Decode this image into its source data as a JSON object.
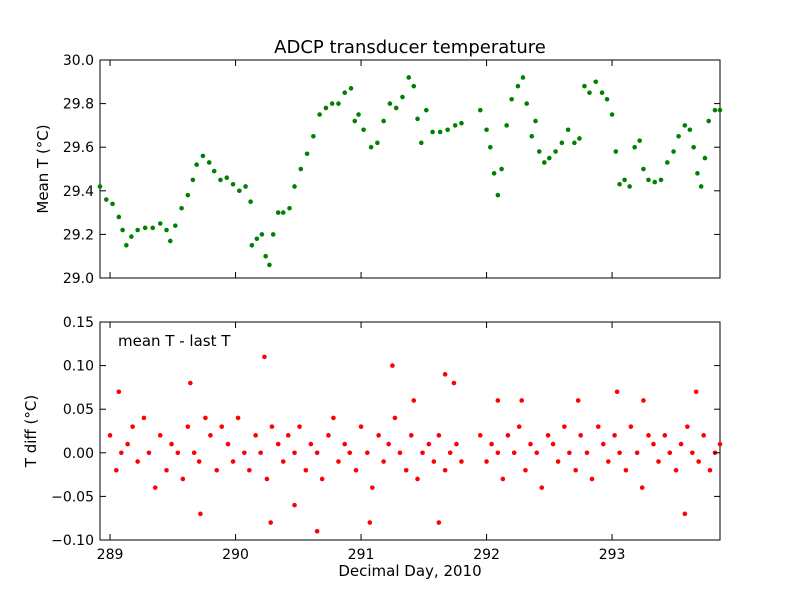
{
  "chart_data": [
    {
      "type": "scatter",
      "title": "ADCP transducer temperature",
      "xlabel": "",
      "ylabel": "Mean T (°C)",
      "xlim": [
        288.92,
        293.86
      ],
      "ylim": [
        29.0,
        30.0
      ],
      "xticks": [
        289,
        290,
        291,
        292,
        293
      ],
      "yticks": [
        29.0,
        29.2,
        29.4,
        29.6,
        29.8,
        30.0
      ],
      "ytick_labels": [
        "29.0",
        "29.2",
        "29.4",
        "29.6",
        "29.8",
        "30.0"
      ],
      "show_xtick_labels": false,
      "grid": false,
      "marker_color": "#008000",
      "series": [
        {
          "points": [
            [
              288.92,
              29.42
            ],
            [
              288.97,
              29.36
            ],
            [
              289.02,
              29.34
            ],
            [
              289.07,
              29.28
            ],
            [
              289.1,
              29.22
            ],
            [
              289.13,
              29.15
            ],
            [
              289.17,
              29.19
            ],
            [
              289.22,
              29.22
            ],
            [
              289.28,
              29.23
            ],
            [
              289.34,
              29.23
            ],
            [
              289.4,
              29.25
            ],
            [
              289.45,
              29.22
            ],
            [
              289.48,
              29.17
            ],
            [
              289.52,
              29.24
            ],
            [
              289.57,
              29.32
            ],
            [
              289.62,
              29.38
            ],
            [
              289.66,
              29.45
            ],
            [
              289.69,
              29.52
            ],
            [
              289.74,
              29.56
            ],
            [
              289.79,
              29.53
            ],
            [
              289.83,
              29.49
            ],
            [
              289.88,
              29.45
            ],
            [
              289.93,
              29.46
            ],
            [
              289.98,
              29.43
            ],
            [
              290.03,
              29.4
            ],
            [
              290.08,
              29.42
            ],
            [
              290.12,
              29.35
            ],
            [
              290.13,
              29.15
            ],
            [
              290.17,
              29.18
            ],
            [
              290.21,
              29.2
            ],
            [
              290.24,
              29.1
            ],
            [
              290.27,
              29.06
            ],
            [
              290.3,
              29.2
            ],
            [
              290.34,
              29.3
            ],
            [
              290.38,
              29.3
            ],
            [
              290.43,
              29.32
            ],
            [
              290.47,
              29.42
            ],
            [
              290.52,
              29.5
            ],
            [
              290.57,
              29.57
            ],
            [
              290.62,
              29.65
            ],
            [
              290.67,
              29.75
            ],
            [
              290.72,
              29.78
            ],
            [
              290.77,
              29.8
            ],
            [
              290.82,
              29.8
            ],
            [
              290.87,
              29.85
            ],
            [
              290.92,
              29.87
            ],
            [
              290.95,
              29.72
            ],
            [
              290.98,
              29.75
            ],
            [
              291.02,
              29.68
            ],
            [
              291.08,
              29.6
            ],
            [
              291.13,
              29.62
            ],
            [
              291.18,
              29.72
            ],
            [
              291.23,
              29.8
            ],
            [
              291.28,
              29.78
            ],
            [
              291.33,
              29.83
            ],
            [
              291.38,
              29.92
            ],
            [
              291.42,
              29.88
            ],
            [
              291.45,
              29.73
            ],
            [
              291.48,
              29.62
            ],
            [
              291.52,
              29.77
            ],
            [
              291.57,
              29.67
            ],
            [
              291.63,
              29.67
            ],
            [
              291.69,
              29.68
            ],
            [
              291.75,
              29.7
            ],
            [
              291.8,
              29.71
            ],
            [
              291.95,
              29.77
            ],
            [
              292.0,
              29.68
            ],
            [
              292.03,
              29.6
            ],
            [
              292.06,
              29.48
            ],
            [
              292.09,
              29.38
            ],
            [
              292.12,
              29.5
            ],
            [
              292.16,
              29.7
            ],
            [
              292.2,
              29.82
            ],
            [
              292.25,
              29.88
            ],
            [
              292.29,
              29.92
            ],
            [
              292.32,
              29.8
            ],
            [
              292.36,
              29.65
            ],
            [
              292.39,
              29.72
            ],
            [
              292.42,
              29.58
            ],
            [
              292.46,
              29.53
            ],
            [
              292.5,
              29.55
            ],
            [
              292.55,
              29.58
            ],
            [
              292.6,
              29.62
            ],
            [
              292.65,
              29.68
            ],
            [
              292.7,
              29.62
            ],
            [
              292.74,
              29.64
            ],
            [
              292.78,
              29.88
            ],
            [
              292.82,
              29.85
            ],
            [
              292.87,
              29.9
            ],
            [
              292.92,
              29.85
            ],
            [
              292.96,
              29.82
            ],
            [
              293.0,
              29.75
            ],
            [
              293.03,
              29.58
            ],
            [
              293.06,
              29.43
            ],
            [
              293.1,
              29.45
            ],
            [
              293.14,
              29.42
            ],
            [
              293.18,
              29.6
            ],
            [
              293.22,
              29.63
            ],
            [
              293.25,
              29.5
            ],
            [
              293.29,
              29.45
            ],
            [
              293.34,
              29.44
            ],
            [
              293.39,
              29.45
            ],
            [
              293.44,
              29.53
            ],
            [
              293.49,
              29.58
            ],
            [
              293.53,
              29.65
            ],
            [
              293.58,
              29.7
            ],
            [
              293.62,
              29.68
            ],
            [
              293.65,
              29.6
            ],
            [
              293.68,
              29.48
            ],
            [
              293.71,
              29.42
            ],
            [
              293.74,
              29.55
            ],
            [
              293.77,
              29.72
            ],
            [
              293.82,
              29.77
            ],
            [
              293.86,
              29.77
            ]
          ]
        }
      ]
    },
    {
      "type": "scatter",
      "title": "",
      "xlabel": "Decimal Day, 2010",
      "ylabel": "T diff (°C)",
      "annotation": "mean T - last T",
      "xlim": [
        288.92,
        293.86
      ],
      "ylim": [
        -0.1,
        0.15
      ],
      "xticks": [
        289,
        290,
        291,
        292,
        293
      ],
      "xtick_labels": [
        "289",
        "290",
        "291",
        "292",
        "293"
      ],
      "yticks": [
        -0.1,
        -0.05,
        0.0,
        0.05,
        0.1,
        0.15
      ],
      "ytick_labels": [
        "−0.10",
        "−0.05",
        "0.00",
        "0.05",
        "0.10",
        "0.15"
      ],
      "grid": false,
      "marker_color": "#ff0000",
      "series": [
        {
          "points": [
            [
              289.0,
              0.02
            ],
            [
              289.05,
              -0.02
            ],
            [
              289.09,
              0.0
            ],
            [
              289.14,
              0.01
            ],
            [
              289.18,
              0.03
            ],
            [
              289.22,
              -0.01
            ],
            [
              289.27,
              0.04
            ],
            [
              289.31,
              0.0
            ],
            [
              289.36,
              -0.04
            ],
            [
              289.4,
              0.02
            ],
            [
              289.45,
              -0.02
            ],
            [
              289.49,
              0.01
            ],
            [
              289.54,
              0.0
            ],
            [
              289.58,
              -0.03
            ],
            [
              289.62,
              0.03
            ],
            [
              289.67,
              0.0
            ],
            [
              289.71,
              -0.01
            ],
            [
              289.76,
              0.04
            ],
            [
              289.8,
              0.02
            ],
            [
              289.85,
              -0.02
            ],
            [
              289.89,
              0.03
            ],
            [
              289.94,
              0.01
            ],
            [
              289.98,
              -0.01
            ],
            [
              290.02,
              0.04
            ],
            [
              290.07,
              0.0
            ],
            [
              290.11,
              -0.02
            ],
            [
              290.16,
              0.02
            ],
            [
              290.2,
              0.0
            ],
            [
              290.25,
              -0.03
            ],
            [
              290.29,
              0.03
            ],
            [
              290.34,
              0.01
            ],
            [
              290.38,
              -0.01
            ],
            [
              290.42,
              0.02
            ],
            [
              290.47,
              0.0
            ],
            [
              290.51,
              0.03
            ],
            [
              290.56,
              -0.02
            ],
            [
              290.6,
              0.01
            ],
            [
              290.65,
              0.0
            ],
            [
              290.69,
              -0.03
            ],
            [
              290.74,
              0.02
            ],
            [
              290.78,
              0.04
            ],
            [
              290.82,
              -0.01
            ],
            [
              290.87,
              0.01
            ],
            [
              290.91,
              0.0
            ],
            [
              290.96,
              -0.02
            ],
            [
              291.0,
              0.03
            ],
            [
              291.05,
              0.0
            ],
            [
              291.09,
              -0.04
            ],
            [
              291.14,
              0.02
            ],
            [
              291.18,
              -0.01
            ],
            [
              291.22,
              0.01
            ],
            [
              291.27,
              0.04
            ],
            [
              291.31,
              0.0
            ],
            [
              291.36,
              -0.02
            ],
            [
              291.4,
              0.02
            ],
            [
              291.45,
              -0.03
            ],
            [
              291.49,
              0.0
            ],
            [
              291.54,
              0.01
            ],
            [
              291.58,
              -0.01
            ],
            [
              291.62,
              0.02
            ],
            [
              291.67,
              -0.02
            ],
            [
              291.71,
              0.0
            ],
            [
              291.76,
              0.01
            ],
            [
              291.8,
              -0.01
            ],
            [
              291.95,
              0.02
            ],
            [
              292.0,
              -0.01
            ],
            [
              292.04,
              0.01
            ],
            [
              292.09,
              0.0
            ],
            [
              292.13,
              -0.03
            ],
            [
              292.17,
              0.02
            ],
            [
              292.22,
              0.0
            ],
            [
              292.26,
              0.03
            ],
            [
              292.31,
              -0.02
            ],
            [
              292.35,
              0.01
            ],
            [
              292.4,
              0.0
            ],
            [
              292.44,
              -0.04
            ],
            [
              292.49,
              0.02
            ],
            [
              292.53,
              0.01
            ],
            [
              292.57,
              -0.01
            ],
            [
              292.62,
              0.03
            ],
            [
              292.66,
              0.0
            ],
            [
              292.71,
              -0.02
            ],
            [
              292.75,
              0.02
            ],
            [
              292.8,
              0.0
            ],
            [
              292.84,
              -0.03
            ],
            [
              292.89,
              0.03
            ],
            [
              292.93,
              0.01
            ],
            [
              292.97,
              -0.01
            ],
            [
              293.02,
              0.02
            ],
            [
              293.06,
              0.0
            ],
            [
              293.11,
              -0.02
            ],
            [
              293.15,
              0.03
            ],
            [
              293.2,
              0.0
            ],
            [
              293.24,
              -0.04
            ],
            [
              293.29,
              0.02
            ],
            [
              293.33,
              0.01
            ],
            [
              293.37,
              -0.01
            ],
            [
              293.42,
              0.02
            ],
            [
              293.46,
              0.0
            ],
            [
              293.51,
              -0.02
            ],
            [
              293.55,
              0.01
            ],
            [
              293.6,
              0.03
            ],
            [
              293.64,
              0.0
            ],
            [
              293.69,
              -0.01
            ],
            [
              293.73,
              0.02
            ],
            [
              293.78,
              -0.02
            ],
            [
              293.82,
              0.0
            ],
            [
              293.86,
              0.01
            ],
            [
              289.07,
              0.07
            ],
            [
              289.64,
              0.08
            ],
            [
              290.23,
              0.11
            ],
            [
              291.25,
              0.1
            ],
            [
              291.67,
              0.09
            ],
            [
              291.74,
              0.08
            ],
            [
              289.72,
              -0.07
            ],
            [
              290.28,
              -0.08
            ],
            [
              290.65,
              -0.09
            ],
            [
              291.07,
              -0.08
            ],
            [
              291.62,
              -0.08
            ],
            [
              293.58,
              -0.07
            ],
            [
              293.04,
              0.07
            ],
            [
              293.67,
              0.07
            ],
            [
              292.09,
              0.06
            ],
            [
              292.28,
              0.06
            ],
            [
              292.73,
              0.06
            ],
            [
              293.25,
              0.06
            ],
            [
              291.42,
              0.06
            ],
            [
              290.47,
              -0.06
            ]
          ]
        }
      ]
    }
  ]
}
